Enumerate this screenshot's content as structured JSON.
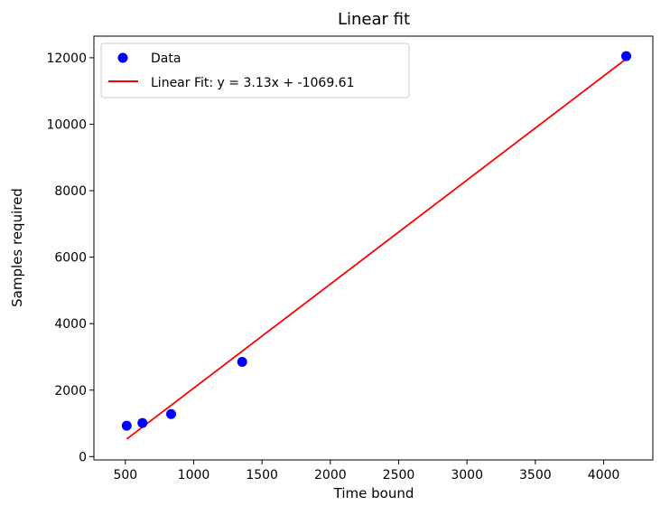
{
  "chart_data": {
    "type": "scatter",
    "title": "Linear fit",
    "xlabel": "Time bound",
    "ylabel": "Samples required",
    "xlim": [
      270,
      4360
    ],
    "ylim": [
      -100,
      12650
    ],
    "xticks": [
      500,
      1000,
      1500,
      2000,
      2500,
      3000,
      3500,
      4000
    ],
    "yticks": [
      0,
      2000,
      4000,
      6000,
      8000,
      10000,
      12000
    ],
    "grid": false,
    "legend_position": "top-left",
    "series": [
      {
        "name": "Data",
        "kind": "scatter",
        "color": "#0000ff",
        "points": [
          {
            "x": 510,
            "y": 930
          },
          {
            "x": 625,
            "y": 1010
          },
          {
            "x": 835,
            "y": 1280
          },
          {
            "x": 1355,
            "y": 2850
          },
          {
            "x": 4165,
            "y": 12050
          }
        ]
      },
      {
        "name": "Linear Fit: y = 3.13x + -1069.61",
        "kind": "line",
        "color": "#ff0000",
        "slope": 3.13,
        "intercept": -1069.61,
        "x_range": [
          510,
          4165
        ]
      }
    ]
  }
}
